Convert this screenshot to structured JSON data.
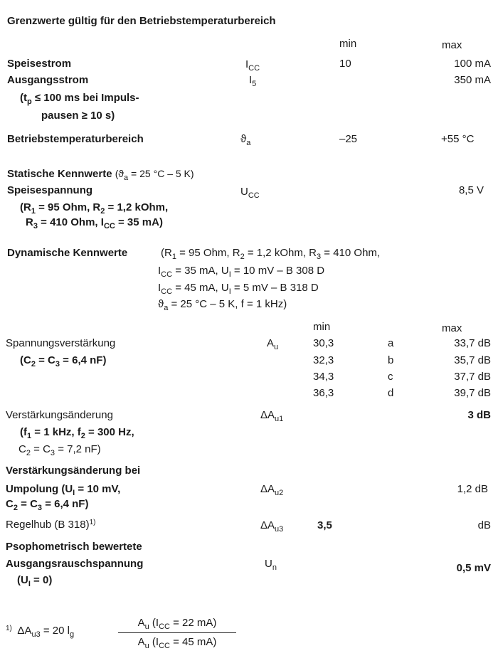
{
  "title": "Grenzwerte gültig für den Betriebstemperaturbereich",
  "limits": {
    "col_min": "min",
    "col_max": "max",
    "rows": [
      {
        "label": "Speisestrom",
        "sym": "I",
        "sub": "CC",
        "min": "10",
        "max": "100 mA"
      },
      {
        "label": "Ausgangsstrom",
        "sym": "I",
        "sub": "5",
        "min": "",
        "max": "350 mA",
        "note1": [
          "(t",
          "p",
          " ≤ 100 ms bei Impuls-"
        ],
        "note2": "pausen ≥ 10 s)"
      },
      {
        "label": "Betriebstemperaturbereich",
        "sym": "ϑ",
        "sub": "a",
        "min": "–25",
        "max": "+55 °C"
      }
    ]
  },
  "static": {
    "heading": "Statische Kennwerte",
    "cond": [
      "(ϑ",
      "a",
      " = 25 °C – 5 K)"
    ],
    "label": "Speisespannung",
    "sym": "U",
    "sub": "CC",
    "max": "8,5 V",
    "note1": [
      "(R",
      "1",
      " = 95 Ohm, R",
      "2",
      " = 1,2 kOhm,"
    ],
    "note2": [
      "R",
      "3",
      " = 410 Ohm, I",
      "CC",
      " = 35 mA)"
    ]
  },
  "dynamic": {
    "heading": "Dynamische Kennwerte",
    "cond1": [
      "(R",
      "1",
      " = 95 Ohm, R",
      "2",
      " = 1,2 kOhm, R",
      "3",
      " = 410 Ohm,"
    ],
    "cond2": [
      "I",
      "CC",
      " = 35 mA, U",
      "I",
      " = 10 mV – B 308 D"
    ],
    "cond3": [
      "I",
      "CC",
      " = 45 mA, U",
      "I",
      " =  5 mV – B 318 D"
    ],
    "cond4": [
      "ϑ",
      "a",
      " = 25 °C – 5 K, f = 1 kHz)"
    ],
    "col_min": "min",
    "col_max": "max",
    "gain": {
      "label": "Spannungsverstärkung",
      "note": [
        "(C",
        "2",
        " = C",
        "3",
        " = 6,4 nF)"
      ],
      "sym": "A",
      "sub": "u",
      "groups": [
        {
          "min": "30,3",
          "group": "a",
          "max": "33,7 dB"
        },
        {
          "min": "32,3",
          "group": "b",
          "max": "35,7 dB"
        },
        {
          "min": "34,3",
          "group": "c",
          "max": "37,7 dB"
        },
        {
          "min": "36,3",
          "group": "d",
          "max": "39,7 dB"
        }
      ]
    },
    "gain_change": {
      "label": "Verstärkungsänderung",
      "note1": [
        "(f",
        "1",
        " = 1 kHz, f",
        "2",
        " = 300 Hz,"
      ],
      "note2": [
        "C",
        "2",
        " = C",
        "3",
        " = 7,2 nF)"
      ],
      "sym": "ΔA",
      "sub": "u1",
      "max": "3 dB"
    },
    "polarity": {
      "label1": "Verstärkungsänderung bei",
      "label2": [
        "Umpolung (U",
        "I",
        " = 10 mV,"
      ],
      "label3": [
        "C",
        "2",
        " = C",
        "3",
        " = 6,4 nF)"
      ],
      "sym": "ΔA",
      "sub": "u2",
      "max": "1,2 dB"
    },
    "regelhub": {
      "label": "Regelhub (B 318)",
      "footnote_mark": "1)",
      "sym": "ΔA",
      "sub": "u3",
      "min": "3,5",
      "max": "dB"
    },
    "noise": {
      "label1": "Psophometrisch bewertete",
      "label2": "Ausgangsrauschspannung",
      "note": [
        "(U",
        "I",
        " = 0)"
      ],
      "sym": "U",
      "sub": "n",
      "max": "0,5 mV"
    }
  },
  "footnote": {
    "mark": "1)",
    "lhs": [
      "ΔA",
      "u3",
      " = 20 l",
      "g"
    ],
    "num": [
      "A",
      "u",
      " (I",
      "CC",
      " = 22 mA)"
    ],
    "den": [
      "A",
      "u",
      " (I",
      "CC",
      " = 45 mA)"
    ]
  }
}
